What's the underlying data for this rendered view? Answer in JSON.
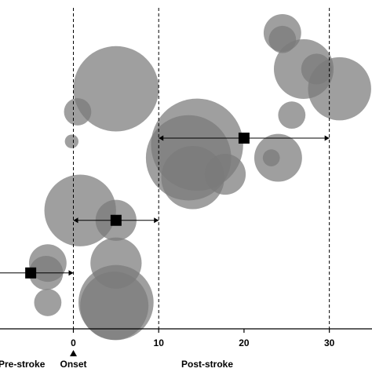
{
  "chart_data": {
    "type": "scatter",
    "style": "bubble",
    "xlim": [
      -8.6,
      35
    ],
    "ylim": [
      0,
      100
    ],
    "x_ticks": [
      0,
      10,
      20,
      30
    ],
    "x_tick_labels": [
      "0",
      "10",
      "20",
      "30"
    ],
    "grid": false,
    "reference_lines": [
      0,
      10,
      30
    ],
    "axis_labels": {
      "pre": "Pre-stroke",
      "onset": "Onset",
      "post": "Post-stroke"
    },
    "onset_marker": "triangle-up",
    "bubble_color": "#7a7a7a",
    "bubbles": [
      {
        "x": 5,
        "y": 73,
        "r": 5
      },
      {
        "x": 0.5,
        "y": 66,
        "r": 1.6
      },
      {
        "x": -0.2,
        "y": 57,
        "r": 0.8
      },
      {
        "x": 0.8,
        "y": 36,
        "r": 4.2
      },
      {
        "x": 5,
        "y": 33,
        "r": 2.4
      },
      {
        "x": 5,
        "y": 20,
        "r": 3
      },
      {
        "x": 5,
        "y": 8,
        "r": 4.4
      },
      {
        "x": 4.8,
        "y": 7,
        "r": 4
      },
      {
        "x": -3,
        "y": 20,
        "r": 2.2
      },
      {
        "x": -3.2,
        "y": 17,
        "r": 2
      },
      {
        "x": -3,
        "y": 8,
        "r": 1.6
      },
      {
        "x": 14.5,
        "y": 56,
        "r": 5.4
      },
      {
        "x": 13.5,
        "y": 52,
        "r": 5
      },
      {
        "x": 14,
        "y": 46,
        "r": 3.7
      },
      {
        "x": 17.8,
        "y": 47,
        "r": 2.4
      },
      {
        "x": 24.5,
        "y": 90,
        "r": 2.2
      },
      {
        "x": 24.5,
        "y": 88,
        "r": 1.6
      },
      {
        "x": 27,
        "y": 79,
        "r": 3.5
      },
      {
        "x": 31.2,
        "y": 73,
        "r": 3.7
      },
      {
        "x": 28.5,
        "y": 79,
        "r": 1.8
      },
      {
        "x": 25.6,
        "y": 65,
        "r": 1.6
      },
      {
        "x": 24,
        "y": 52,
        "r": 2.8
      },
      {
        "x": 23.2,
        "y": 52,
        "r": 1
      }
    ],
    "mean_ranges": [
      {
        "x": 20,
        "y": 58,
        "low": 10,
        "high": 30
      },
      {
        "x": 5,
        "y": 33,
        "low": 0,
        "high": 10
      },
      {
        "x": -5,
        "y": 17,
        "low": -8.6,
        "high": 0
      }
    ]
  }
}
